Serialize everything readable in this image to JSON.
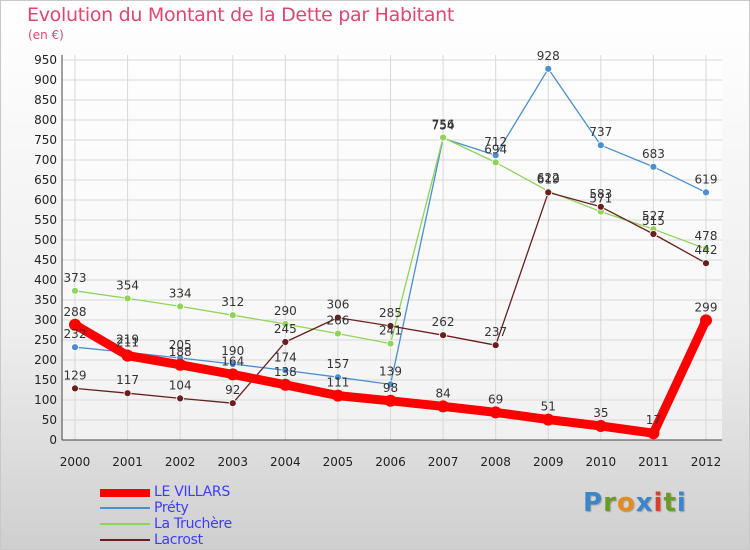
{
  "title": "Evolution du Montant de la Dette par Habitant",
  "unit": "(en €)",
  "logo_text": "Proxiti",
  "chart_data": {
    "type": "line",
    "title": "Evolution du Montant de la Dette par Habitant",
    "ylabel": "(en €)",
    "xlabel": "",
    "x": [
      "2000",
      "2001",
      "2002",
      "2003",
      "2004",
      "2005",
      "2006",
      "2007",
      "2008",
      "2009",
      "2010",
      "2011",
      "2012"
    ],
    "ylim": [
      0,
      950
    ],
    "yticks": [
      0,
      50,
      100,
      150,
      200,
      250,
      300,
      350,
      400,
      450,
      500,
      550,
      600,
      650,
      700,
      750,
      800,
      850,
      900,
      950
    ],
    "grid": true,
    "legend_position": "bottom-left",
    "series": [
      {
        "name": "LE VILLARS",
        "color": "#ff0000",
        "values": [
          288,
          211,
          188,
          164,
          138,
          111,
          98,
          84,
          69,
          51,
          35,
          17,
          299
        ]
      },
      {
        "name": "Préty",
        "color": "#4a8fcf",
        "values": [
          232,
          219,
          205,
          190,
          174,
          157,
          139,
          754,
          712,
          928,
          737,
          683,
          619
        ]
      },
      {
        "name": "La Truchère",
        "color": "#8fd45a",
        "values": [
          373,
          354,
          334,
          312,
          290,
          266,
          241,
          756,
          694,
          622,
          571,
          527,
          478
        ]
      },
      {
        "name": "Lacrost",
        "color": "#6b1e1e",
        "values": [
          129,
          117,
          104,
          92,
          245,
          306,
          285,
          262,
          237,
          619,
          583,
          515,
          442
        ]
      }
    ]
  }
}
